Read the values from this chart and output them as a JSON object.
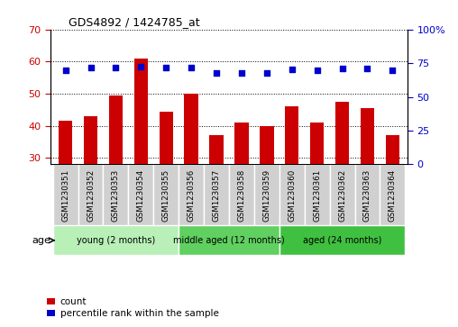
{
  "title": "GDS4892 / 1424785_at",
  "samples": [
    "GSM1230351",
    "GSM1230352",
    "GSM1230353",
    "GSM1230354",
    "GSM1230355",
    "GSM1230356",
    "GSM1230357",
    "GSM1230358",
    "GSM1230359",
    "GSM1230360",
    "GSM1230361",
    "GSM1230362",
    "GSM1230363",
    "GSM1230364"
  ],
  "counts": [
    41.5,
    43.0,
    49.5,
    61.0,
    44.5,
    50.0,
    37.0,
    41.0,
    40.0,
    46.0,
    41.0,
    47.5,
    45.5,
    37.0
  ],
  "percentiles": [
    69.5,
    71.5,
    71.5,
    72.5,
    71.5,
    71.5,
    67.5,
    68.0,
    68.0,
    70.5,
    69.5,
    71.0,
    71.0,
    69.5
  ],
  "ylim_left": [
    28,
    70
  ],
  "ylim_right": [
    0,
    100
  ],
  "yticks_left": [
    30,
    40,
    50,
    60,
    70
  ],
  "yticks_right": [
    0,
    25,
    50,
    75,
    100
  ],
  "ytick_labels_right": [
    "0",
    "25",
    "50",
    "75",
    "100%"
  ],
  "bar_color": "#cc0000",
  "dot_color": "#0000cc",
  "bg_color": "#ffffff",
  "groups": [
    {
      "label": "young (2 months)",
      "start": 0,
      "end": 5,
      "color": "#b8f0b8"
    },
    {
      "label": "middle aged (12 months)",
      "start": 5,
      "end": 9,
      "color": "#60d060"
    },
    {
      "label": "aged (24 months)",
      "start": 9,
      "end": 14,
      "color": "#40c040"
    }
  ],
  "age_label": "age",
  "legend_count_label": "count",
  "legend_pct_label": "percentile rank within the sample",
  "tick_label_color_left": "#cc0000",
  "tick_label_color_right": "#0000cc",
  "sample_bg_color": "#d0d0d0"
}
